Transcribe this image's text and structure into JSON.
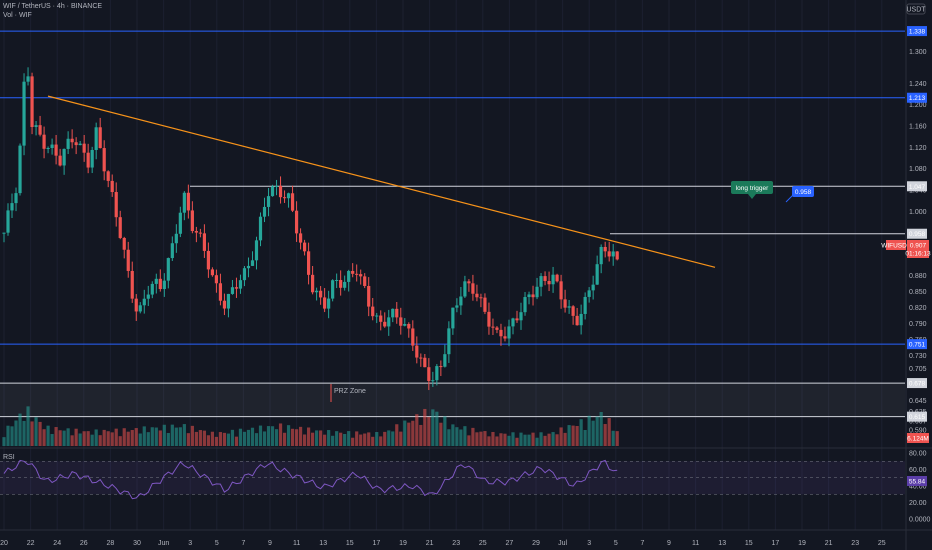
{
  "header": {
    "symbol_line": "WIF / TetherUS · 4h · BINANCE",
    "volume_label": "Vol · WIF"
  },
  "currency_badge": "USDT",
  "rsi_label": "RSI",
  "colors": {
    "background": "#131722",
    "up": "#26a69a",
    "down": "#ef5350",
    "trendline": "#f7931a",
    "support_blue": "#2962ff",
    "white_line": "#d1d4dc",
    "rsi_line": "#7e57c2"
  },
  "chart_data": {
    "type": "candlestick",
    "title": "WIF / TetherUS · 4h · BINANCE",
    "price_ticks": [
      "1.300",
      "1.240",
      "1.200",
      "1.160",
      "1.120",
      "1.080",
      "1.040",
      "1.000",
      "0.960",
      "0.920",
      "0.880",
      "0.850",
      "0.820",
      "0.790",
      "0.760",
      "0.730",
      "0.705",
      "0.680",
      "0.645",
      "0.625",
      "0.607",
      "0.590"
    ],
    "x_ticks": [
      "20",
      "22",
      "24",
      "26",
      "28",
      "30",
      "Jun",
      "3",
      "5",
      "7",
      "9",
      "11",
      "13",
      "15",
      "17",
      "19",
      "21",
      "23",
      "25",
      "27",
      "29",
      "Jul",
      "3",
      "5",
      "7",
      "9",
      "11",
      "13",
      "15",
      "17",
      "19",
      "21",
      "23",
      "25"
    ],
    "rsi_ticks": [
      "80.00",
      "60.00",
      "40.00",
      "20.00",
      "0.0000"
    ],
    "levels": [
      {
        "price": 1.338,
        "label": "1.338",
        "color": "blue"
      },
      {
        "price": 1.213,
        "label": "1.213",
        "color": "blue"
      },
      {
        "price": 1.047,
        "label": "1.047",
        "color": "white"
      },
      {
        "price": 0.958,
        "label": "0.958",
        "color": "white"
      },
      {
        "price": 0.751,
        "label": "0.751",
        "color": "blue"
      },
      {
        "price": 0.678,
        "label": "0.678",
        "color": "white"
      },
      {
        "price": 0.615,
        "label": "0.615",
        "color": "white"
      }
    ],
    "price_tag": {
      "symbol": "WIFUSDT",
      "value": "0.907",
      "countdown": "01:16:13"
    },
    "volume_tag": "6.124M",
    "rsi_tag": "55.84",
    "annotations": {
      "long_trigger": "long trigger",
      "target_price": "0.958",
      "prz_zone": "PRZ Zone"
    },
    "trendline": {
      "start": {
        "date": "May 22",
        "price": 1.216
      },
      "end": {
        "date": "Jul 11",
        "price": 0.895
      }
    },
    "price_path": [
      {
        "d": 0,
        "p": 0.96
      },
      {
        "d": 1,
        "p": 1.05
      },
      {
        "d": 1.6,
        "p": 1.3
      },
      {
        "d": 2,
        "p": 1.17
      },
      {
        "d": 3,
        "p": 1.13
      },
      {
        "d": 4,
        "p": 1.09
      },
      {
        "d": 5,
        "p": 1.14
      },
      {
        "d": 6,
        "p": 1.1
      },
      {
        "d": 6.6,
        "p": 1.15
      },
      {
        "d": 7.5,
        "p": 1.04
      },
      {
        "d": 8.2,
        "p": 0.97
      },
      {
        "d": 9,
        "p": 0.87
      },
      {
        "d": 9.6,
        "p": 0.81
      },
      {
        "d": 10.4,
        "p": 0.86
      },
      {
        "d": 11.2,
        "p": 0.85
      },
      {
        "d": 12,
        "p": 0.93
      },
      {
        "d": 12.8,
        "p": 1.04
      },
      {
        "d": 13.4,
        "p": 0.98
      },
      {
        "d": 14.2,
        "p": 0.93
      },
      {
        "d": 15,
        "p": 0.86
      },
      {
        "d": 15.8,
        "p": 0.83
      },
      {
        "d": 16.5,
        "p": 0.87
      },
      {
        "d": 17.3,
        "p": 0.88
      },
      {
        "d": 18,
        "p": 0.93
      },
      {
        "d": 18.8,
        "p": 1.04
      },
      {
        "d": 19.6,
        "p": 1.05
      },
      {
        "d": 20.4,
        "p": 1.02
      },
      {
        "d": 21.2,
        "p": 0.93
      },
      {
        "d": 22,
        "p": 0.86
      },
      {
        "d": 22.8,
        "p": 0.83
      },
      {
        "d": 23.6,
        "p": 0.87
      },
      {
        "d": 24.4,
        "p": 0.86
      },
      {
        "d": 25.2,
        "p": 0.89
      },
      {
        "d": 26,
        "p": 0.84
      },
      {
        "d": 26.8,
        "p": 0.79
      },
      {
        "d": 27.6,
        "p": 0.8
      },
      {
        "d": 28.4,
        "p": 0.79
      },
      {
        "d": 29.2,
        "p": 0.76
      },
      {
        "d": 30,
        "p": 0.71
      },
      {
        "d": 30.6,
        "p": 0.685
      },
      {
        "d": 31.2,
        "p": 0.7
      },
      {
        "d": 32,
        "p": 0.8
      },
      {
        "d": 32.8,
        "p": 0.87
      },
      {
        "d": 33.6,
        "p": 0.86
      },
      {
        "d": 34.4,
        "p": 0.8
      },
      {
        "d": 35.2,
        "p": 0.76
      },
      {
        "d": 36,
        "p": 0.78
      },
      {
        "d": 36.8,
        "p": 0.82
      },
      {
        "d": 37.6,
        "p": 0.84
      },
      {
        "d": 38.4,
        "p": 0.86
      },
      {
        "d": 39.2,
        "p": 0.88
      },
      {
        "d": 40,
        "p": 0.84
      },
      {
        "d": 40.8,
        "p": 0.79
      },
      {
        "d": 41.4,
        "p": 0.81
      },
      {
        "d": 42.2,
        "p": 0.88
      },
      {
        "d": 42.8,
        "p": 0.94
      },
      {
        "d": 43.4,
        "p": 0.93
      },
      {
        "d": 43.8,
        "p": 0.907
      }
    ],
    "volume_path": [
      {
        "d": 0,
        "v": 0.35
      },
      {
        "d": 1.6,
        "v": 0.9
      },
      {
        "d": 3,
        "v": 0.45
      },
      {
        "d": 6,
        "v": 0.35
      },
      {
        "d": 9,
        "v": 0.4
      },
      {
        "d": 12.8,
        "v": 0.5
      },
      {
        "d": 15,
        "v": 0.3
      },
      {
        "d": 19.6,
        "v": 0.5
      },
      {
        "d": 23,
        "v": 0.35
      },
      {
        "d": 27,
        "v": 0.3
      },
      {
        "d": 30.6,
        "v": 0.9
      },
      {
        "d": 32,
        "v": 0.5
      },
      {
        "d": 35,
        "v": 0.3
      },
      {
        "d": 39,
        "v": 0.3
      },
      {
        "d": 42.8,
        "v": 0.8
      },
      {
        "d": 43.8,
        "v": 0.35
      }
    ],
    "rsi_path": [
      {
        "d": 0,
        "r": 55
      },
      {
        "d": 1.6,
        "r": 72
      },
      {
        "d": 3,
        "r": 45
      },
      {
        "d": 5,
        "r": 55
      },
      {
        "d": 7.5,
        "r": 40
      },
      {
        "d": 9.6,
        "r": 25
      },
      {
        "d": 11,
        "r": 45
      },
      {
        "d": 12.8,
        "r": 68
      },
      {
        "d": 15.8,
        "r": 35
      },
      {
        "d": 18.8,
        "r": 68
      },
      {
        "d": 20.4,
        "r": 55
      },
      {
        "d": 22.8,
        "r": 38
      },
      {
        "d": 25.2,
        "r": 55
      },
      {
        "d": 26.8,
        "r": 35
      },
      {
        "d": 29.2,
        "r": 40
      },
      {
        "d": 30.6,
        "r": 28
      },
      {
        "d": 32.8,
        "r": 68
      },
      {
        "d": 34.4,
        "r": 45
      },
      {
        "d": 36,
        "r": 45
      },
      {
        "d": 38.4,
        "r": 62
      },
      {
        "d": 40.8,
        "r": 40
      },
      {
        "d": 42.8,
        "r": 70
      },
      {
        "d": 43.8,
        "r": 55
      }
    ]
  }
}
